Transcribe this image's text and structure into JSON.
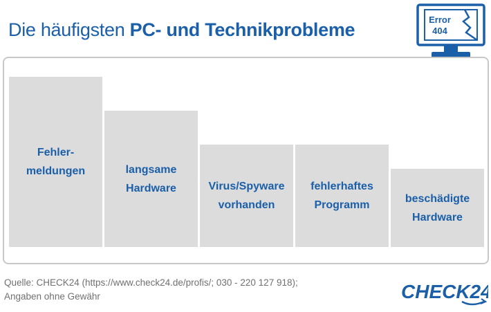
{
  "title": {
    "regular": "Die häufigsten",
    "bold": "PC- und Technikprobleme"
  },
  "monitor": {
    "line1": "Error",
    "line2": "404"
  },
  "chart_data": {
    "type": "bar",
    "title": "Die häufigsten PC- und Technikprobleme",
    "categories": [
      "Fehler-\nmeldungen",
      "langsame\nHardware",
      "Virus/Spyware\nvorhanden",
      "fehlerhaftes\nProgramm",
      "beschädigte\nHardware"
    ],
    "values": [
      5,
      4,
      3,
      3,
      2.3
    ],
    "ylim": [
      0,
      5
    ],
    "xlabel": "",
    "ylabel": "",
    "bar_color": "#dcdcdc",
    "label_color": "#1a5fa8"
  },
  "source": {
    "line1": "Quelle: CHECK24 (https://www.check24.de/profis/; 030 - 220 127 918);",
    "line2": "Angaben ohne Gewähr"
  },
  "brand": {
    "name": "CHECK24",
    "color": "#1a5fa8"
  }
}
